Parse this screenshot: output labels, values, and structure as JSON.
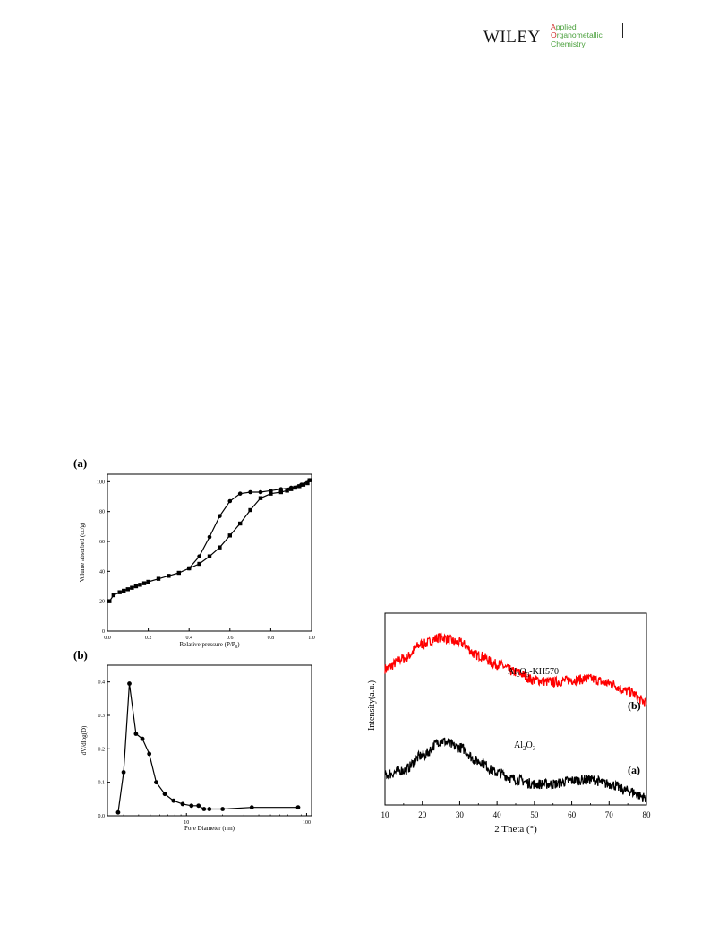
{
  "header": {
    "publisher": "WILEY",
    "journal_lines": [
      {
        "cap": "A",
        "rest": "pplied"
      },
      {
        "cap": "O",
        "rest": "rganometallic"
      },
      {
        "cap": "",
        "rest": "Chemistry"
      }
    ]
  },
  "chart_data": [
    {
      "type": "line",
      "panel_label": "(a)",
      "xlabel": "Relative pressure (P/P0)",
      "ylabel": "Volume absorbed (cc/g)",
      "xlim": [
        0,
        1.0
      ],
      "ylim": [
        0,
        105
      ],
      "xticks": [
        "0.0",
        "0.2",
        "0.4",
        "0.6",
        "0.8",
        "1.0"
      ],
      "yticks": [
        "0",
        "20",
        "40",
        "60",
        "80",
        "100"
      ],
      "grid": false,
      "series": [
        {
          "x": [
            0.01,
            0.03,
            0.06,
            0.08,
            0.1,
            0.12,
            0.14,
            0.16,
            0.18,
            0.2,
            0.25,
            0.3,
            0.35,
            0.4,
            0.45,
            0.5,
            0.55,
            0.6,
            0.65,
            0.7,
            0.75,
            0.8,
            0.85,
            0.88,
            0.9,
            0.92,
            0.94,
            0.96,
            0.98,
            0.99
          ],
          "y": [
            20,
            24,
            26,
            27,
            28,
            29,
            30,
            31,
            32,
            33,
            35,
            37,
            39,
            42,
            45,
            50,
            56,
            64,
            72,
            81,
            89,
            92,
            93,
            94,
            95,
            96,
            97,
            98,
            99,
            101
          ]
        },
        {
          "x": [
            0.99,
            0.95,
            0.9,
            0.85,
            0.8,
            0.75,
            0.7,
            0.65,
            0.6,
            0.55,
            0.5,
            0.45,
            0.4
          ],
          "y": [
            101,
            98,
            96,
            95,
            94,
            93,
            93,
            92,
            87,
            77,
            63,
            50,
            42
          ]
        }
      ]
    },
    {
      "type": "line",
      "panel_label": "(b)",
      "xlabel": "Pore Diameter (nm)",
      "ylabel": "dV/dlog(D)",
      "xscale": "log",
      "xlim": [
        2.2,
        110
      ],
      "ylim": [
        0,
        0.45
      ],
      "xticks": [
        "10",
        "100"
      ],
      "yticks": [
        "0.0",
        "0.1",
        "0.2",
        "0.3",
        "0.4"
      ],
      "grid": false,
      "series": [
        {
          "x": [
            2.7,
            3.0,
            3.35,
            3.8,
            4.3,
            4.9,
            5.6,
            6.6,
            7.8,
            9.3,
            11,
            12.6,
            14,
            15.5,
            20,
            35,
            85
          ],
          "y": [
            0.01,
            0.13,
            0.395,
            0.245,
            0.23,
            0.185,
            0.1,
            0.065,
            0.045,
            0.035,
            0.03,
            0.03,
            0.02,
            0.02,
            0.02,
            0.025,
            0.025
          ]
        }
      ]
    },
    {
      "type": "line",
      "xlabel": "2 Theta (°)",
      "ylabel": "Intensity(a.u.)",
      "xlim": [
        10,
        80
      ],
      "xticks": [
        "10",
        "20",
        "30",
        "40",
        "50",
        "60",
        "70",
        "80"
      ],
      "grid": false,
      "series": [
        {
          "name": "Al2O3-KH570",
          "marker": "(b)",
          "color": "#ff0000",
          "x": [
            10,
            15,
            20,
            25,
            30,
            35,
            40,
            45,
            50,
            55,
            60,
            65,
            70,
            75,
            80
          ],
          "y": [
            0.72,
            0.81,
            0.94,
            1.0,
            0.95,
            0.84,
            0.76,
            0.69,
            0.62,
            0.6,
            0.62,
            0.63,
            0.59,
            0.52,
            0.42
          ]
        },
        {
          "name": "Al2O3",
          "marker": "(a)",
          "color": "#000000",
          "x": [
            10,
            15,
            20,
            25,
            30,
            35,
            40,
            45,
            50,
            55,
            60,
            65,
            70,
            75,
            80
          ],
          "y": [
            0.28,
            0.32,
            0.45,
            0.58,
            0.52,
            0.4,
            0.3,
            0.24,
            0.2,
            0.2,
            0.23,
            0.24,
            0.2,
            0.14,
            0.08
          ]
        }
      ]
    }
  ],
  "labels": {
    "a_ylabel": "Volume absorbed (cc/g)",
    "a_xlabel_main": "Relative pressure (P/P",
    "a_xlabel_sub": "0",
    "a_xlabel_end": ")",
    "xrd_series_b_base": "Al",
    "xrd_series_b_sub1": "2",
    "xrd_series_b_mid": "O",
    "xrd_series_b_sub2": "3",
    "xrd_series_b_end": "-KH570",
    "xrd_series_a_base": "Al",
    "xrd_series_a_sub1": "2",
    "xrd_series_a_mid": "O",
    "xrd_series_a_sub2": "3"
  }
}
